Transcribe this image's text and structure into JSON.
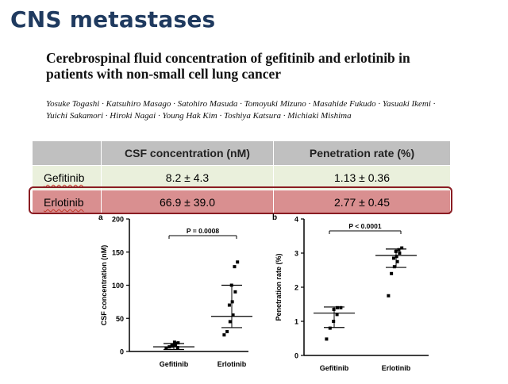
{
  "slide_title": "CNS metastases",
  "paper": {
    "title": "Cerebrospinal fluid concentration of gefitinib and erlotinib in patients with non-small cell lung cancer",
    "authors": "Yosuke Togashi · Katsuhiro Masago · Satohiro Masuda · Tomoyuki Mizuno · Masahide Fukudo · Yasuaki Ikemi · Yuichi Sakamori · Hiroki Nagai · Young Hak Kim · Toshiya Katsura · Michiaki Mishima"
  },
  "table": {
    "headers": [
      "",
      "CSF concentration (nM)",
      "Penetration rate (%)"
    ],
    "rows": [
      [
        "Gefitinib",
        "8.2 ± 4.3",
        "1.13 ± 0.36"
      ],
      [
        "Erlotinib",
        "66.9 ± 39.0",
        "2.77 ± 0.45"
      ]
    ],
    "colors": {
      "header": "#c0c0c0",
      "gefitinib_row": "#eaf0dc",
      "erlotinib_row": "#d98f90",
      "highlight_border": "#8a1c22"
    }
  },
  "chart_data": [
    {
      "type": "scatter",
      "panel_label": "a",
      "ylabel": "CSF concentration (nM)",
      "categories": [
        "Gefitinib",
        "Erlotinib"
      ],
      "ylim": [
        0,
        200
      ],
      "yticks": [
        0,
        50,
        100,
        150,
        200
      ],
      "p_value": "P = 0.0008",
      "series": [
        {
          "values": [
            5,
            7,
            8,
            9,
            10,
            12,
            13,
            14,
            6
          ]
        },
        {
          "values": [
            25,
            30,
            45,
            55,
            70,
            75,
            90,
            100,
            128,
            135
          ]
        }
      ],
      "summary": [
        {
          "center": 7,
          "low": 3,
          "high": 12
        },
        {
          "center": 53,
          "low": 36,
          "high": 100
        }
      ]
    },
    {
      "type": "scatter",
      "panel_label": "b",
      "ylabel": "Penetration rate (%)",
      "categories": [
        "Gefitinib",
        "Erlotinib"
      ],
      "ylim": [
        0,
        4
      ],
      "yticks": [
        0,
        1,
        2,
        3,
        4
      ],
      "p_value": "P < 0.0001",
      "series": [
        {
          "values": [
            0.48,
            0.8,
            1.0,
            1.2,
            1.35,
            1.4,
            1.4
          ]
        },
        {
          "values": [
            1.75,
            2.4,
            2.6,
            2.75,
            2.85,
            2.9,
            3.0,
            3.05,
            3.1,
            3.15
          ]
        }
      ],
      "summary": [
        {
          "center": 1.24,
          "low": 0.82,
          "high": 1.42
        },
        {
          "center": 2.93,
          "low": 2.58,
          "high": 3.12
        }
      ]
    }
  ]
}
